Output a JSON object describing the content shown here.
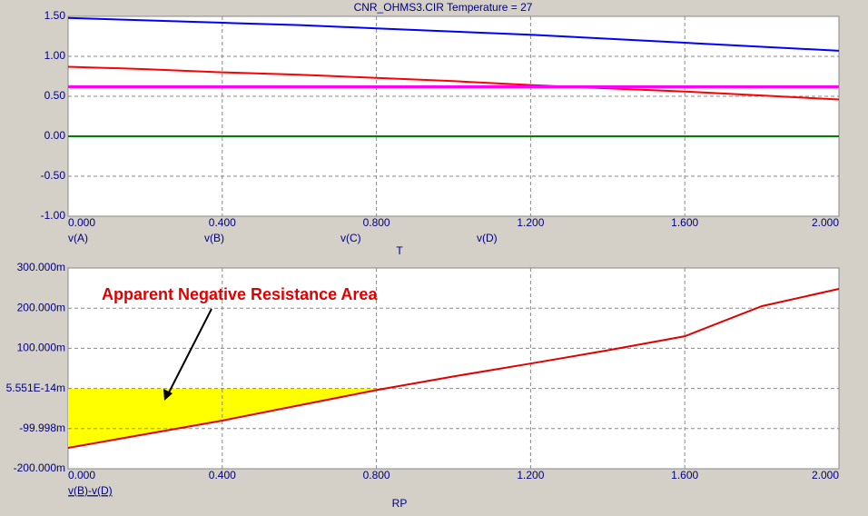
{
  "chart_data": [
    {
      "type": "line",
      "title": "CNR_OHMS3.CIR Temperature = 27",
      "xlabel": "T",
      "x": [
        0,
        0.2,
        0.4,
        0.6,
        0.8,
        1.0,
        1.2,
        1.4,
        1.6,
        1.8,
        2.0
      ],
      "series": [
        {
          "name": "v(A)",
          "color": "#0000ff",
          "values": [
            1.48,
            1.45,
            1.42,
            1.39,
            1.35,
            1.31,
            1.27,
            1.22,
            1.17,
            1.12,
            1.07
          ]
        },
        {
          "name": "v(B)",
          "color": "#ff0000",
          "values": [
            0.87,
            0.84,
            0.8,
            0.77,
            0.73,
            0.69,
            0.64,
            0.6,
            0.56,
            0.51,
            0.46
          ]
        },
        {
          "name": "v(C)",
          "color": "#008000",
          "values": [
            0,
            0,
            0,
            0,
            0,
            0,
            0,
            0,
            0,
            0,
            0
          ]
        },
        {
          "name": "v(D)",
          "color": "#ff00ff",
          "values": [
            0.62,
            0.62,
            0.62,
            0.62,
            0.62,
            0.62,
            0.62,
            0.62,
            0.62,
            0.62,
            0.62
          ]
        }
      ],
      "xlim": [
        0,
        2
      ],
      "ylim": [
        -1,
        1.5
      ],
      "xticks": [
        {
          "value": 0,
          "label": "0.000"
        },
        {
          "value": 0.4,
          "label": "0.400"
        },
        {
          "value": 0.8,
          "label": "0.800"
        },
        {
          "value": 1.2,
          "label": "1.200"
        },
        {
          "value": 1.6,
          "label": "1.600"
        },
        {
          "value": 2,
          "label": "2.000"
        }
      ],
      "yticks": [
        {
          "value": 1.5,
          "label": "1.50"
        },
        {
          "value": 1,
          "label": "1.00"
        },
        {
          "value": 0.5,
          "label": "0.50"
        },
        {
          "value": 0,
          "label": "0.00"
        },
        {
          "value": -0.5,
          "label": "-0.50"
        },
        {
          "value": -1,
          "label": "-1.00"
        }
      ],
      "grid": true
    },
    {
      "type": "line",
      "xlabel": "RP",
      "annotation": "Apparent Negative Resistance Area",
      "x": [
        0,
        0.2,
        0.4,
        0.6,
        0.8,
        1.0,
        1.2,
        1.4,
        1.6,
        1.8,
        2.0
      ],
      "series": [
        {
          "name": "v(B)-v(D)",
          "color": "#e00000",
          "values": [
            -148,
            -114,
            -80,
            -42,
            -4,
            30,
            62,
            95,
            130,
            205,
            248
          ]
        }
      ],
      "xlim": [
        0,
        2
      ],
      "ylim": [
        -200,
        300
      ],
      "xticks": [
        {
          "value": 0,
          "label": "0.000"
        },
        {
          "value": 0.4,
          "label": "0.400"
        },
        {
          "value": 0.8,
          "label": "0.800"
        },
        {
          "value": 1.2,
          "label": "1.200"
        },
        {
          "value": 1.6,
          "label": "1.600"
        },
        {
          "value": 2,
          "label": "2.000"
        }
      ],
      "yticks": [
        {
          "value": 300,
          "label": "300.000m"
        },
        {
          "value": 200,
          "label": "200.000m"
        },
        {
          "value": 100,
          "label": "100.000m"
        },
        {
          "value": 5.551e-14,
          "label": "5.551E-14m"
        },
        {
          "value": -99.998,
          "label": "-99.998m"
        },
        {
          "value": -200,
          "label": "-200.000m"
        }
      ],
      "grid": true
    }
  ]
}
